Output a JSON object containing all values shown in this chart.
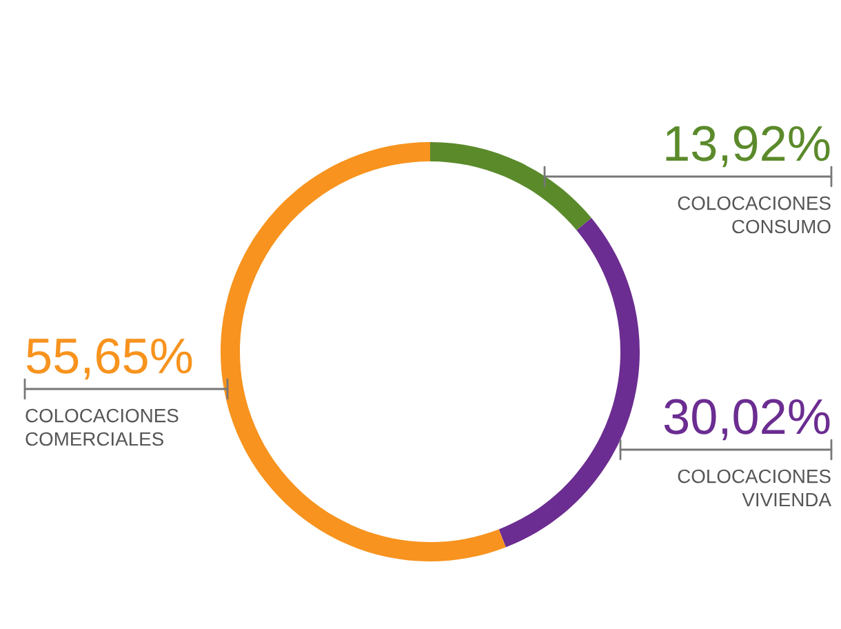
{
  "chart_data": {
    "type": "donut",
    "categories": [
      "COLOCACIONES\nCONSUMO",
      "COLOCACIONES\nVIVIENDA",
      "COLOCACIONES\nCOMERCIALES"
    ],
    "values": [
      13.92,
      30.02,
      55.65
    ],
    "value_labels": [
      "13,92%",
      "30,02%",
      "55,65%"
    ],
    "colors": [
      "#5b8a2b",
      "#6b2d91",
      "#f7931e"
    ],
    "legend": false
  }
}
